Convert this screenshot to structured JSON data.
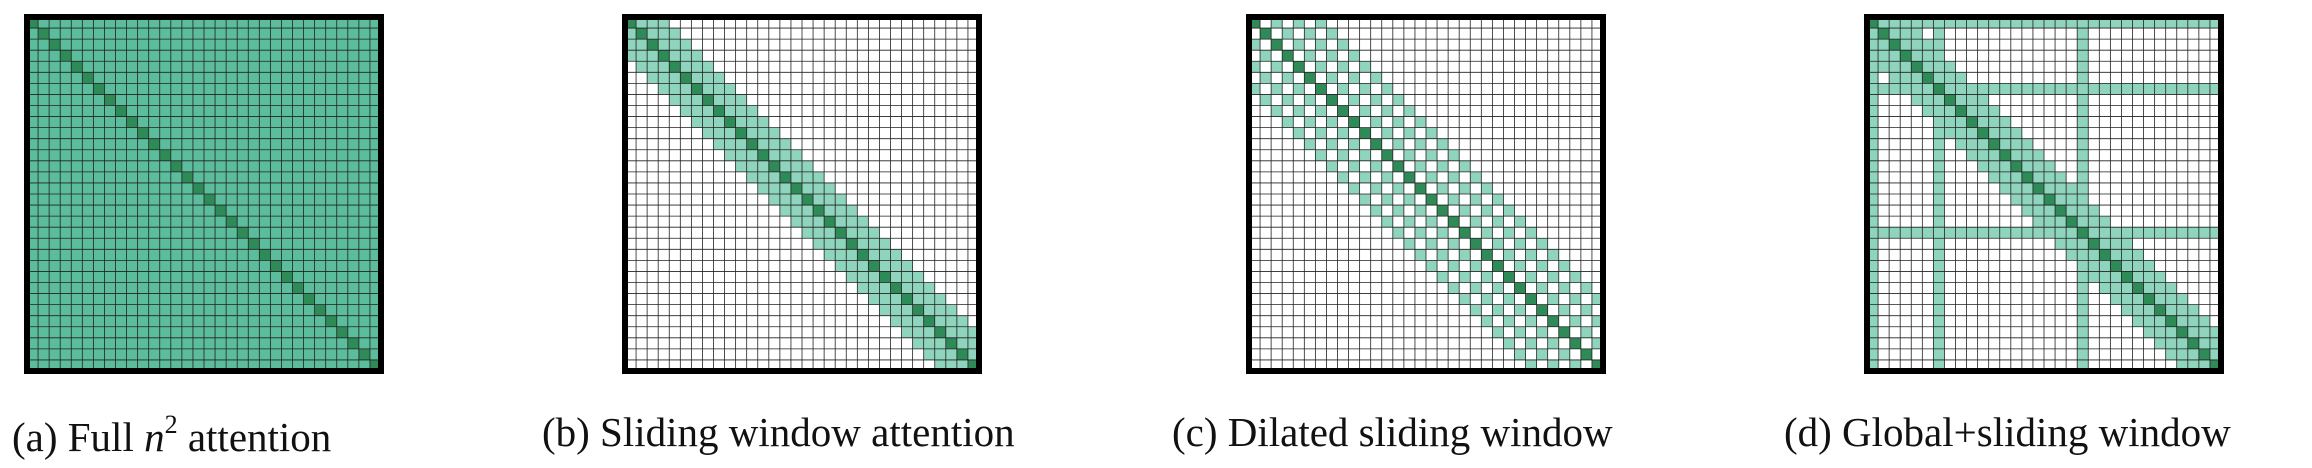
{
  "figure": {
    "grid_size": 32,
    "colors": {
      "attended": "#5bbd9c",
      "window": "#8fd4bd",
      "diagonal": "#2e8b57",
      "empty": "#ffffff",
      "gridline": "#222222",
      "border": "#000000"
    },
    "panels": [
      {
        "pattern": "full",
        "caption_prefix": "(a) Full ",
        "caption_math": "n",
        "caption_sup": "2",
        "caption_suffix": " attention"
      },
      {
        "pattern": "sliding",
        "window_half_width": 3,
        "caption_prefix": "(b) Sliding window attention"
      },
      {
        "pattern": "dilated",
        "window_half_width": 3,
        "dilation": 2,
        "caption_prefix": "(c) Dilated sliding window"
      },
      {
        "pattern": "global_sliding",
        "window_half_width": 3,
        "global_tokens": [
          0,
          6,
          19
        ],
        "caption_prefix": "(d) Global+sliding window"
      }
    ]
  }
}
